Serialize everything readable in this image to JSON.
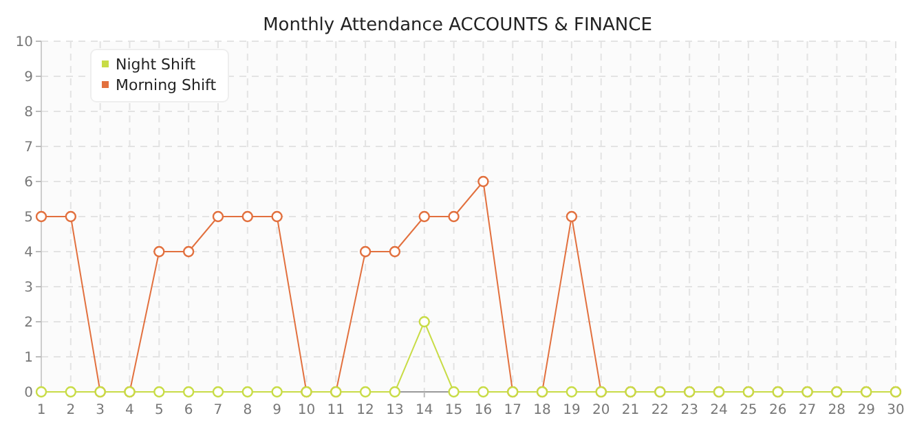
{
  "chart_data": {
    "type": "line",
    "title": "Monthly Attendance ACCOUNTS & FINANCE",
    "x": [
      1,
      2,
      3,
      4,
      5,
      6,
      7,
      8,
      9,
      10,
      11,
      12,
      13,
      14,
      15,
      16,
      17,
      18,
      19,
      20,
      21,
      22,
      23,
      24,
      25,
      26,
      27,
      28,
      29,
      30
    ],
    "series": [
      {
        "name": "Night Shift",
        "color": "#c8dc46",
        "values": [
          0,
          0,
          0,
          0,
          0,
          0,
          0,
          0,
          0,
          0,
          0,
          0,
          0,
          2,
          0,
          0,
          0,
          0,
          0,
          0,
          0,
          0,
          0,
          0,
          0,
          0,
          0,
          0,
          0,
          0
        ]
      },
      {
        "name": "Morning Shift",
        "color": "#e2703e",
        "values": [
          5,
          5,
          0,
          0,
          4,
          4,
          5,
          5,
          5,
          0,
          0,
          4,
          4,
          5,
          5,
          6,
          0,
          0,
          5,
          0,
          0,
          0,
          0,
          0,
          0,
          0,
          0,
          0,
          0,
          0
        ]
      }
    ],
    "xlim": [
      1,
      30
    ],
    "xticks": [
      1,
      2,
      3,
      4,
      5,
      6,
      7,
      8,
      9,
      10,
      11,
      12,
      13,
      14,
      15,
      16,
      17,
      18,
      19,
      20,
      21,
      22,
      23,
      24,
      25,
      26,
      27,
      28,
      29,
      30
    ],
    "ylim": [
      0,
      10
    ],
    "yticks": [
      0,
      1,
      2,
      3,
      4,
      5,
      6,
      7,
      8,
      9,
      10
    ],
    "grid": true,
    "legend": "top left",
    "marker": "circle",
    "line_style": "solid"
  }
}
